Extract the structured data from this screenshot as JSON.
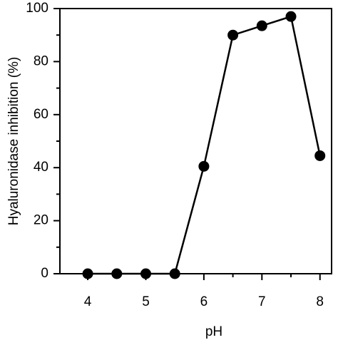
{
  "chart_data": {
    "type": "line",
    "x_label": "pH",
    "y_label": "Hyaluronidase inhibition (%)",
    "x": [
      4,
      4.5,
      5,
      5.5,
      6,
      6.5,
      7,
      7.5,
      8
    ],
    "series": [
      {
        "color": "#000000",
        "values": [
          0,
          0,
          0,
          0,
          40.5,
          90,
          93.5,
          97,
          44.5
        ]
      }
    ],
    "xlim": [
      3.52,
      8.2
    ],
    "ylim": [
      0,
      100
    ],
    "xticks": [
      4,
      5,
      6,
      7,
      8
    ],
    "yticks": [
      0,
      20,
      40,
      60,
      80,
      100
    ],
    "x_minor_ticks": [
      4.5,
      5.5,
      6.5,
      7.5
    ],
    "y_minor_ticks": [
      10,
      30,
      50,
      70,
      90
    ],
    "grid": false
  }
}
